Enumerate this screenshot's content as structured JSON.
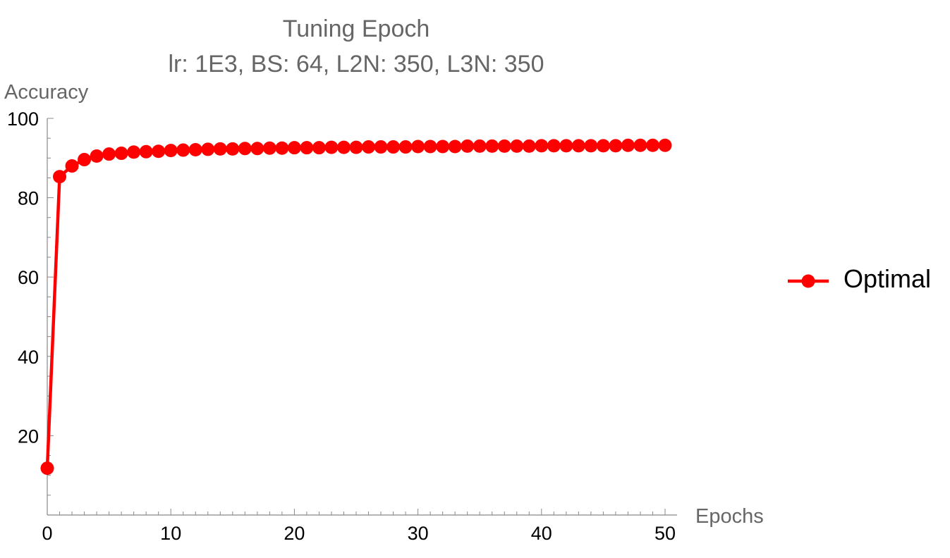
{
  "chart_data": {
    "type": "line",
    "title": "Tuning Epoch",
    "subtitle": "lr: 1E3, BS: 64, L2N: 350, L3N: 350",
    "xlabel": "Epochs",
    "ylabel": "Accuracy",
    "xlim": [
      0,
      50
    ],
    "ylim": [
      0,
      100
    ],
    "x_ticks": [
      0,
      10,
      20,
      30,
      40,
      50
    ],
    "y_ticks": [
      20,
      40,
      60,
      80,
      100
    ],
    "grid": false,
    "legend_position": "right",
    "series": [
      {
        "name": "Optimal",
        "color": "#ff0000",
        "marker": "circle",
        "x": [
          0,
          1,
          2,
          3,
          4,
          5,
          6,
          7,
          8,
          9,
          10,
          11,
          12,
          13,
          14,
          15,
          16,
          17,
          18,
          19,
          20,
          21,
          22,
          23,
          24,
          25,
          26,
          27,
          28,
          29,
          30,
          31,
          32,
          33,
          34,
          35,
          36,
          37,
          38,
          39,
          40,
          41,
          42,
          43,
          44,
          45,
          46,
          47,
          48,
          49,
          50
        ],
        "y": [
          11.8,
          85.3,
          88.0,
          89.6,
          90.5,
          91.0,
          91.2,
          91.5,
          91.6,
          91.7,
          91.9,
          92.0,
          92.1,
          92.2,
          92.3,
          92.3,
          92.4,
          92.4,
          92.5,
          92.5,
          92.6,
          92.6,
          92.6,
          92.7,
          92.7,
          92.7,
          92.8,
          92.8,
          92.8,
          92.8,
          92.9,
          92.9,
          92.9,
          92.9,
          93.0,
          93.0,
          93.0,
          93.0,
          93.0,
          93.0,
          93.1,
          93.1,
          93.1,
          93.1,
          93.1,
          93.1,
          93.1,
          93.2,
          93.2,
          93.2,
          93.2
        ]
      }
    ]
  }
}
